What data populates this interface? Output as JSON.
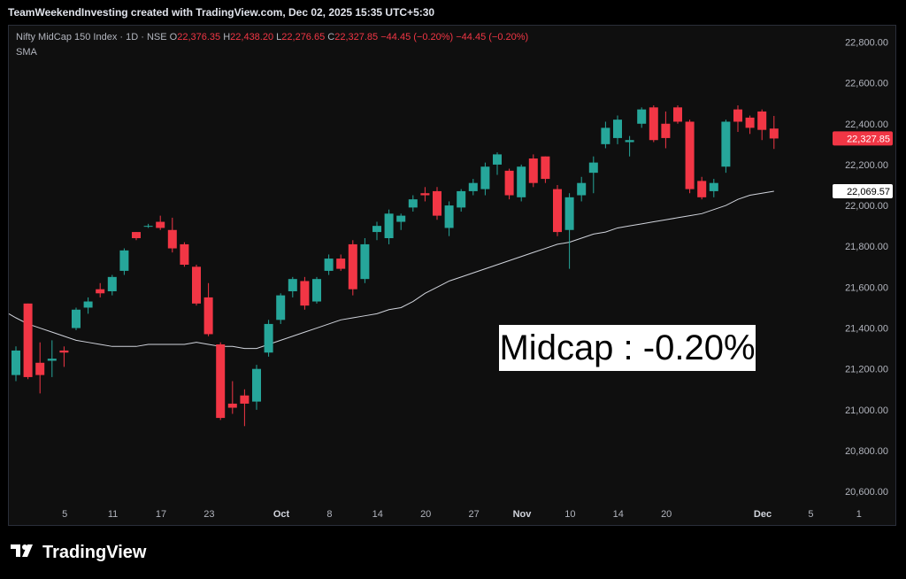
{
  "header": {
    "attribution": "TeamWeekendInvesting created with TradingView.com, Dec 02, 2025 15:35 UTC+5:30"
  },
  "legend": {
    "symbol": "Nifty MidCap 150 Index · 1D · NSE",
    "o_label": "O",
    "o_value": "22,376.35",
    "h_label": "H",
    "h_value": "22,438.20",
    "l_label": "L",
    "l_value": "22,276.65",
    "c_label": "C",
    "c_value": "22,327.85",
    "change": "−44.45 (−0.20%)",
    "change2": "−44.45 (−0.20%)",
    "sma_label": "SMA"
  },
  "annotation": {
    "text": "Midcap : -0.20%"
  },
  "brand": {
    "name": "TradingView"
  },
  "colors": {
    "up": "#26a69a",
    "down": "#f23645",
    "sma": "#d1d4dc",
    "bg": "#0f0f0f",
    "axis_text": "#b2b5be"
  },
  "chart_data": {
    "type": "candlestick",
    "y_ticks": [
      "22,800.00",
      "22,600.00",
      "22,400.00",
      "22,200.00",
      "22,000.00",
      "21,800.00",
      "21,600.00",
      "21,400.00",
      "21,200.00",
      "21,000.00",
      "20,800.00",
      "20,600.00"
    ],
    "y_tick_values": [
      22800,
      22600,
      22400,
      22200,
      22000,
      21800,
      21600,
      21400,
      21200,
      21000,
      20800,
      20600
    ],
    "ylim": [
      20540,
      22880
    ],
    "x_ticks": [
      {
        "label": "5",
        "index": 2,
        "bold": false
      },
      {
        "label": "11",
        "index": 6,
        "bold": false
      },
      {
        "label": "17",
        "index": 10,
        "bold": false
      },
      {
        "label": "23",
        "index": 14,
        "bold": false
      },
      {
        "label": "Oct",
        "index": 20,
        "bold": true
      },
      {
        "label": "8",
        "index": 24,
        "bold": false
      },
      {
        "label": "14",
        "index": 28,
        "bold": false
      },
      {
        "label": "20",
        "index": 32,
        "bold": false
      },
      {
        "label": "27",
        "index": 36,
        "bold": false
      },
      {
        "label": "Nov",
        "index": 40,
        "bold": true
      },
      {
        "label": "10",
        "index": 44,
        "bold": false
      },
      {
        "label": "14",
        "index": 48,
        "bold": false
      },
      {
        "label": "20",
        "index": 52,
        "bold": false
      },
      {
        "label": "Dec",
        "index": 60,
        "bold": true
      },
      {
        "label": "5",
        "index": 64,
        "bold": false
      },
      {
        "label": "1",
        "index": 68,
        "bold": false
      }
    ],
    "last_price": "22,327.85",
    "last_price_value": 22327.85,
    "sma_last": "22,069.57",
    "sma_last_value": 22069.57,
    "candles": [
      {
        "o": 21170,
        "h": 21310,
        "l": 21140,
        "c": 21290
      },
      {
        "o": 21520,
        "h": 21520,
        "l": 21150,
        "c": 21160
      },
      {
        "o": 21230,
        "h": 21330,
        "l": 21080,
        "c": 21170
      },
      {
        "o": 21240,
        "h": 21340,
        "l": 21160,
        "c": 21250
      },
      {
        "o": 21290,
        "h": 21310,
        "l": 21210,
        "c": 21280
      },
      {
        "o": 21400,
        "h": 21500,
        "l": 21390,
        "c": 21490
      },
      {
        "o": 21500,
        "h": 21550,
        "l": 21470,
        "c": 21530
      },
      {
        "o": 21590,
        "h": 21620,
        "l": 21550,
        "c": 21570
      },
      {
        "o": 21580,
        "h": 21660,
        "l": 21560,
        "c": 21650
      },
      {
        "o": 21680,
        "h": 21790,
        "l": 21660,
        "c": 21780
      },
      {
        "o": 21870,
        "h": 21870,
        "l": 21830,
        "c": 21840
      },
      {
        "o": 21900,
        "h": 21910,
        "l": 21890,
        "c": 21900
      },
      {
        "o": 21920,
        "h": 21950,
        "l": 21880,
        "c": 21890
      },
      {
        "o": 21880,
        "h": 21940,
        "l": 21770,
        "c": 21790
      },
      {
        "o": 21810,
        "h": 21820,
        "l": 21700,
        "c": 21710
      },
      {
        "o": 21700,
        "h": 21710,
        "l": 21510,
        "c": 21520
      },
      {
        "o": 21550,
        "h": 21620,
        "l": 21360,
        "c": 21370
      },
      {
        "o": 21320,
        "h": 21330,
        "l": 20950,
        "c": 20960
      },
      {
        "o": 21030,
        "h": 21140,
        "l": 20980,
        "c": 21010
      },
      {
        "o": 21070,
        "h": 21100,
        "l": 20920,
        "c": 21030
      },
      {
        "o": 21040,
        "h": 21220,
        "l": 21000,
        "c": 21200
      },
      {
        "o": 21280,
        "h": 21440,
        "l": 21260,
        "c": 21420
      },
      {
        "o": 21440,
        "h": 21570,
        "l": 21420,
        "c": 21560
      },
      {
        "o": 21580,
        "h": 21650,
        "l": 21550,
        "c": 21640
      },
      {
        "o": 21630,
        "h": 21650,
        "l": 21490,
        "c": 21510
      },
      {
        "o": 21530,
        "h": 21650,
        "l": 21520,
        "c": 21640
      },
      {
        "o": 21680,
        "h": 21760,
        "l": 21660,
        "c": 21740
      },
      {
        "o": 21740,
        "h": 21760,
        "l": 21680,
        "c": 21690
      },
      {
        "o": 21810,
        "h": 21830,
        "l": 21560,
        "c": 21590
      },
      {
        "o": 21640,
        "h": 21840,
        "l": 21620,
        "c": 21810
      },
      {
        "o": 21870,
        "h": 21920,
        "l": 21830,
        "c": 21900
      },
      {
        "o": 21840,
        "h": 21980,
        "l": 21810,
        "c": 21960
      },
      {
        "o": 21920,
        "h": 21960,
        "l": 21880,
        "c": 21950
      },
      {
        "o": 21990,
        "h": 22050,
        "l": 21970,
        "c": 22030
      },
      {
        "o": 22060,
        "h": 22090,
        "l": 22020,
        "c": 22050
      },
      {
        "o": 22070,
        "h": 22090,
        "l": 21930,
        "c": 21950
      },
      {
        "o": 21890,
        "h": 22020,
        "l": 21850,
        "c": 22000
      },
      {
        "o": 21990,
        "h": 22080,
        "l": 21970,
        "c": 22070
      },
      {
        "o": 22070,
        "h": 22130,
        "l": 22050,
        "c": 22110
      },
      {
        "o": 22080,
        "h": 22210,
        "l": 22050,
        "c": 22190
      },
      {
        "o": 22200,
        "h": 22260,
        "l": 22150,
        "c": 22250
      },
      {
        "o": 22170,
        "h": 22180,
        "l": 22030,
        "c": 22050
      },
      {
        "o": 22040,
        "h": 22200,
        "l": 22020,
        "c": 22190
      },
      {
        "o": 22230,
        "h": 22250,
        "l": 22090,
        "c": 22110
      },
      {
        "o": 22240,
        "h": 22240,
        "l": 22110,
        "c": 22130
      },
      {
        "o": 22080,
        "h": 22100,
        "l": 21850,
        "c": 21870
      },
      {
        "o": 21880,
        "h": 22060,
        "l": 21690,
        "c": 22040
      },
      {
        "o": 22050,
        "h": 22140,
        "l": 22020,
        "c": 22110
      },
      {
        "o": 22160,
        "h": 22240,
        "l": 22060,
        "c": 22210
      },
      {
        "o": 22300,
        "h": 22410,
        "l": 22280,
        "c": 22380
      },
      {
        "o": 22330,
        "h": 22440,
        "l": 22300,
        "c": 22420
      },
      {
        "o": 22310,
        "h": 22340,
        "l": 22240,
        "c": 22320
      },
      {
        "o": 22400,
        "h": 22480,
        "l": 22380,
        "c": 22470
      },
      {
        "o": 22480,
        "h": 22490,
        "l": 22310,
        "c": 22320
      },
      {
        "o": 22400,
        "h": 22460,
        "l": 22280,
        "c": 22330
      },
      {
        "o": 22480,
        "h": 22490,
        "l": 22400,
        "c": 22410
      },
      {
        "o": 22410,
        "h": 22420,
        "l": 22060,
        "c": 22080
      },
      {
        "o": 22120,
        "h": 22140,
        "l": 22030,
        "c": 22040
      },
      {
        "o": 22070,
        "h": 22130,
        "l": 22040,
        "c": 22110
      },
      {
        "o": 22190,
        "h": 22420,
        "l": 22160,
        "c": 22410
      },
      {
        "o": 22470,
        "h": 22490,
        "l": 22360,
        "c": 22410
      },
      {
        "o": 22430,
        "h": 22440,
        "l": 22350,
        "c": 22380
      },
      {
        "o": 22460,
        "h": 22470,
        "l": 22320,
        "c": 22370
      },
      {
        "o": 22376.35,
        "h": 22438.2,
        "l": 22276.65,
        "c": 22327.85
      }
    ],
    "sma": [
      21450,
      21420,
      21400,
      21380,
      21360,
      21340,
      21330,
      21320,
      21310,
      21310,
      21310,
      21320,
      21320,
      21320,
      21320,
      21330,
      21320,
      21310,
      21310,
      21300,
      21300,
      21320,
      21340,
      21360,
      21380,
      21400,
      21420,
      21440,
      21450,
      21460,
      21470,
      21490,
      21500,
      21530,
      21570,
      21600,
      21630,
      21650,
      21670,
      21690,
      21710,
      21730,
      21750,
      21770,
      21790,
      21810,
      21820,
      21840,
      21860,
      21870,
      21890,
      21900,
      21910,
      21920,
      21930,
      21940,
      21950,
      21960,
      21980,
      22000,
      22030,
      22050,
      22060,
      22069.57
    ],
    "x_start_index": 0
  }
}
